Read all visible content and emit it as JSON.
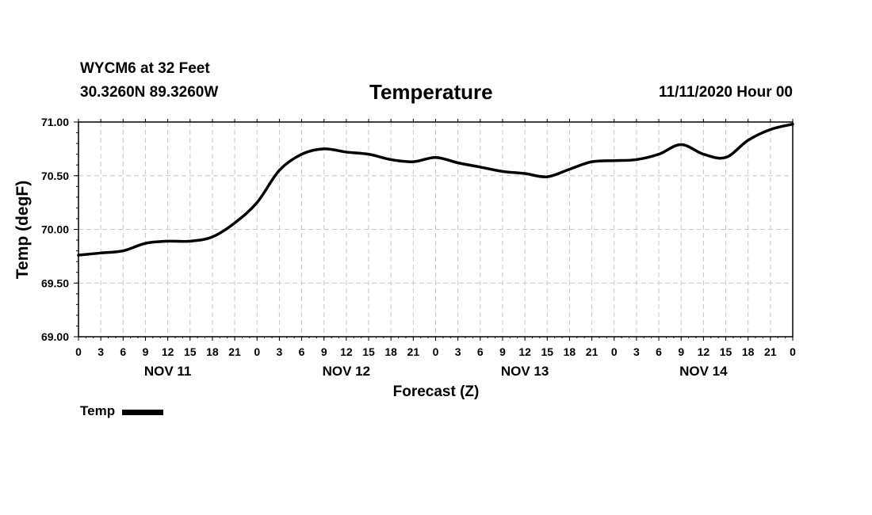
{
  "header": {
    "station": "WYCM6 at 32 Feet",
    "location": "30.3260N 89.3260W",
    "title": "Temperature",
    "datetime": "11/11/2020 Hour 00"
  },
  "legend": {
    "label": "Temp"
  },
  "chart_data": {
    "type": "line",
    "title": "Temperature",
    "xlabel": "Forecast (Z)",
    "ylabel": "Temp (degF)",
    "ylim": [
      69.0,
      71.0
    ],
    "yticks": [
      "69.00",
      "69.50",
      "70.00",
      "70.50",
      "71.00"
    ],
    "xlim": [
      0,
      96
    ],
    "xtick_labels": [
      "0",
      "3",
      "6",
      "9",
      "12",
      "15",
      "18",
      "21",
      "0",
      "3",
      "6",
      "9",
      "12",
      "15",
      "18",
      "21",
      "0",
      "3",
      "6",
      "9",
      "12",
      "15",
      "18",
      "21",
      "0",
      "3",
      "6",
      "9",
      "12",
      "15",
      "18",
      "21",
      "0"
    ],
    "day_labels": [
      {
        "label": "NOV 11",
        "hour": 12
      },
      {
        "label": "NOV 12",
        "hour": 36
      },
      {
        "label": "NOV 13",
        "hour": 60
      },
      {
        "label": "NOV 14",
        "hour": 84
      }
    ],
    "grid": true,
    "series": [
      {
        "name": "Temp",
        "x": [
          0,
          3,
          6,
          9,
          12,
          15,
          18,
          21,
          24,
          27,
          30,
          33,
          36,
          39,
          42,
          45,
          48,
          51,
          54,
          57,
          60,
          63,
          66,
          69,
          72,
          75,
          78,
          81,
          84,
          87,
          90,
          93,
          96
        ],
        "values": [
          69.76,
          69.78,
          69.8,
          69.87,
          69.89,
          69.89,
          69.93,
          70.06,
          70.25,
          70.55,
          70.7,
          70.75,
          70.72,
          70.7,
          70.65,
          70.63,
          70.67,
          70.62,
          70.58,
          70.54,
          70.52,
          70.49,
          70.56,
          70.63,
          70.64,
          70.65,
          70.7,
          70.79,
          70.7,
          70.67,
          70.83,
          70.93,
          70.98
        ]
      }
    ]
  }
}
